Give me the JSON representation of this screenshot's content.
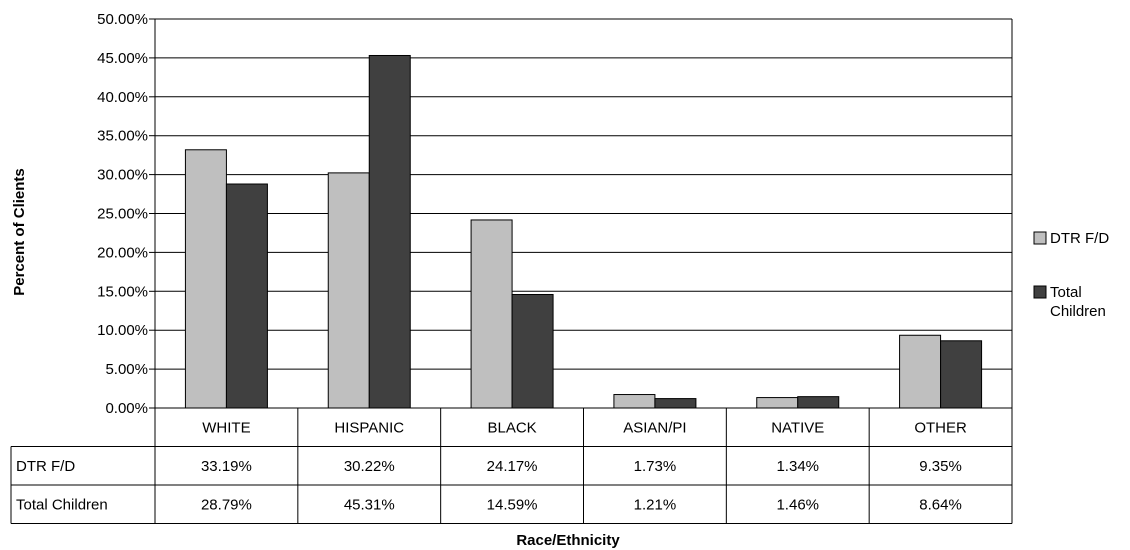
{
  "chart_data": {
    "type": "bar",
    "title": "",
    "xlabel": "Race/Ethnicity",
    "ylabel": "Percent of Clients",
    "ylim": [
      0,
      50
    ],
    "y_tick_step": 5,
    "y_tick_format": "percent_2dp",
    "grid": true,
    "legend_position": "right",
    "data_table": true,
    "categories": [
      "WHITE",
      "HISPANIC",
      "BLACK",
      "ASIAN/PI",
      "NATIVE",
      "OTHER"
    ],
    "series": [
      {
        "name": "DTR F/D",
        "color": "#bfbfbf",
        "values": [
          33.19,
          30.22,
          24.17,
          1.73,
          1.34,
          9.35
        ],
        "labels": [
          "33.19%",
          "30.22%",
          "24.17%",
          "1.73%",
          "1.34%",
          "9.35%"
        ]
      },
      {
        "name": "Total Children",
        "legend_lines": [
          "Total",
          "Children"
        ],
        "color": "#404040",
        "values": [
          28.79,
          45.31,
          14.59,
          1.21,
          1.46,
          8.64
        ],
        "labels": [
          "28.79%",
          "45.31%",
          "14.59%",
          "1.21%",
          "1.46%",
          "8.64%"
        ]
      }
    ]
  }
}
